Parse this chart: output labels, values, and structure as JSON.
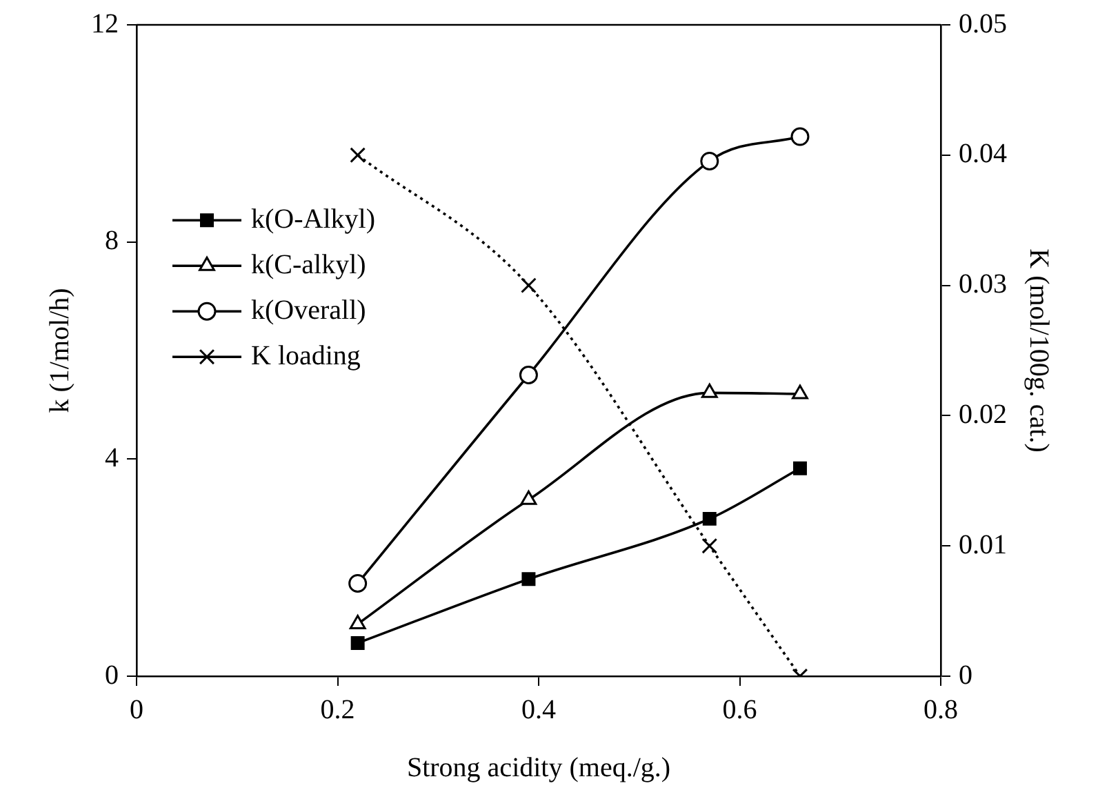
{
  "chart_data": {
    "type": "line",
    "xlabel": "Strong acidity (meq./g.)",
    "ylabel": "k (1/mol/h)",
    "y2label": "K (mol/100g. cat.)",
    "x": [
      0.22,
      0.39,
      0.57,
      0.66
    ],
    "xlim": [
      0,
      0.8
    ],
    "xticks": [
      0,
      0.2,
      0.4,
      0.6,
      0.8
    ],
    "ylim": [
      0,
      12
    ],
    "yticks": [
      0,
      4,
      8,
      12
    ],
    "y2lim": [
      0,
      0.05
    ],
    "y2ticks": [
      0,
      0.01,
      0.02,
      0.03,
      0.04,
      0.05
    ],
    "grid": false,
    "legend": "left",
    "line_style": "solid",
    "series": [
      {
        "name": "k(O-Alkyl)",
        "color": "#000000",
        "marker": "square",
        "values": [
          0.61,
          1.79,
          2.9,
          3.83
        ]
      },
      {
        "name": "k(C-alkyl)",
        "color": "#000000",
        "marker": "triangle",
        "values": [
          0.96,
          3.25,
          5.22,
          5.2
        ]
      },
      {
        "name": "k(Overall)",
        "color": "#000000",
        "marker": "circle",
        "values": [
          1.71,
          5.55,
          9.49,
          9.94
        ]
      },
      {
        "name": "K loading",
        "color": "#000000",
        "marker": "cross",
        "line_style": "dotted",
        "axis": "y2",
        "values": [
          0.04,
          0.03,
          0.01,
          0
        ]
      }
    ]
  }
}
